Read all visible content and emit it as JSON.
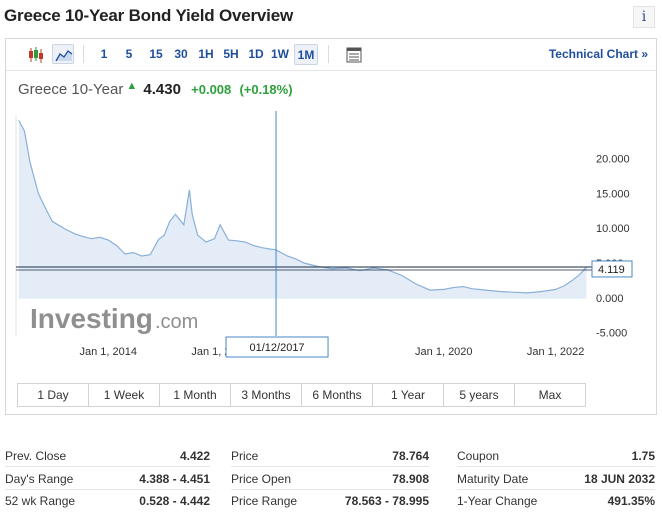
{
  "page": {
    "title": "Greece 10-Year Bond Yield Overview",
    "info_icon": "info-icon"
  },
  "toolbar": {
    "chart_type_icons": [
      "candlestick-icon",
      "area-chart-icon"
    ],
    "timeframes": [
      "1",
      "5",
      "15",
      "30",
      "1H",
      "5H",
      "1D",
      "1W",
      "1M"
    ],
    "active_timeframe": "1M",
    "table_icon": "table-icon",
    "technical_chart_link": "Technical Chart »"
  },
  "quote": {
    "name": "Greece 10-Year",
    "price": "4.430",
    "change": "+0.008",
    "change_pct": "(+0.18%)",
    "arrow": "▲",
    "up_color": "#2ea13c"
  },
  "chart": {
    "watermark": "Investing.com",
    "crosshair_date": "01/12/2017",
    "last_value_label": "4.119",
    "fill_color": "#e4edf7",
    "line_color": "#8ab0d8"
  },
  "chart_data": {
    "type": "area",
    "title": "",
    "xlabel": "",
    "ylabel": "",
    "x_tick_labels": [
      "Jan 1, 2014",
      "Jan 1, 2016",
      "Jan 1, 2020",
      "Jan 1, 2022"
    ],
    "y_tick_labels": [
      "20.000",
      "15.000",
      "10.000",
      "5.000",
      "0.000",
      "-5.000"
    ],
    "y_ticks": [
      20,
      15,
      10,
      5,
      0,
      -5
    ],
    "ylim": [
      -5.5,
      26
    ],
    "xlim": [
      2012.35,
      2022.65
    ],
    "x_ticks": [
      2014,
      2016,
      2020,
      2022
    ],
    "crosshair_x": 2017.0,
    "horizontal_line_y": 4.43,
    "grid": false,
    "series": [
      {
        "x": [
          2012.4,
          2012.5,
          2012.6,
          2012.75,
          2012.9,
          2013.0,
          2013.1,
          2013.25,
          2013.4,
          2013.55,
          2013.7,
          2013.85,
          2014.0,
          2014.15,
          2014.3,
          2014.45,
          2014.6,
          2014.75,
          2014.9,
          2015.0,
          2015.1,
          2015.2,
          2015.35,
          2015.45,
          2015.5,
          2015.6,
          2015.75,
          2015.9,
          2016.0,
          2016.15,
          2016.3,
          2016.45,
          2016.6,
          2016.75,
          2016.9,
          2017.0,
          2017.2,
          2017.35,
          2017.5,
          2017.75,
          2018.0,
          2018.25,
          2018.5,
          2018.75,
          2019.0,
          2019.25,
          2019.5,
          2019.75,
          2020.0,
          2020.2,
          2020.35,
          2020.5,
          2020.75,
          2021.0,
          2021.25,
          2021.5,
          2021.75,
          2022.0,
          2022.15,
          2022.3,
          2022.45,
          2022.55
        ],
        "y": [
          25.5,
          24.0,
          19.5,
          15.0,
          12.5,
          11.0,
          10.5,
          9.8,
          9.2,
          8.8,
          8.5,
          8.7,
          8.3,
          7.5,
          6.3,
          6.5,
          6.0,
          6.2,
          8.4,
          9.0,
          11.0,
          12.0,
          10.5,
          15.5,
          12.0,
          9.0,
          8.0,
          8.5,
          10.5,
          8.3,
          8.2,
          8.0,
          7.5,
          7.2,
          7.0,
          6.9,
          6.0,
          5.6,
          5.0,
          4.5,
          4.2,
          4.3,
          3.9,
          4.3,
          4.0,
          3.2,
          2.0,
          1.1,
          1.2,
          1.5,
          1.6,
          1.3,
          1.1,
          0.9,
          0.8,
          0.7,
          0.9,
          1.2,
          1.7,
          2.5,
          3.5,
          4.4
        ]
      }
    ]
  },
  "range_buttons": [
    "1 Day",
    "1 Week",
    "1 Month",
    "3 Months",
    "6 Months",
    "1 Year",
    "5 years",
    "Max"
  ],
  "stats": {
    "col1": [
      {
        "label": "Prev. Close",
        "value": "4.422"
      },
      {
        "label": "Day's Range",
        "value": "4.388 - 4.451"
      },
      {
        "label": "52 wk Range",
        "value": "0.528 - 4.442"
      }
    ],
    "col2": [
      {
        "label": "Price",
        "value": "78.764"
      },
      {
        "label": "Price Open",
        "value": "78.908"
      },
      {
        "label": "Price Range",
        "value": "78.563 - 78.995"
      }
    ],
    "col3": [
      {
        "label": "Coupon",
        "value": "1.75"
      },
      {
        "label": "Maturity Date",
        "value": "18 JUN 2032"
      },
      {
        "label": "1-Year Change",
        "value": "491.35%"
      }
    ]
  }
}
